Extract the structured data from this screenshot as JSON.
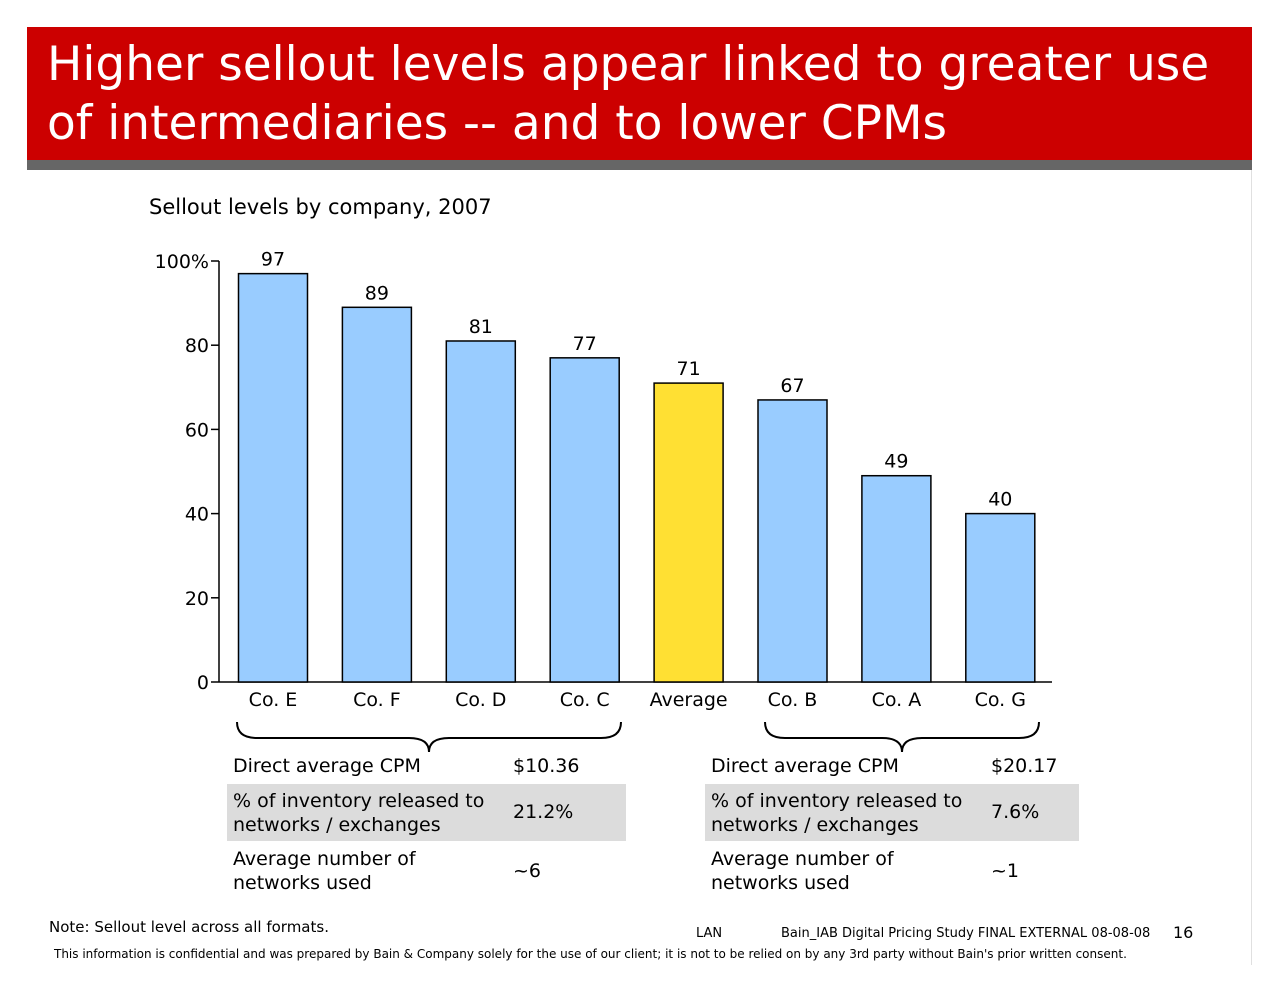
{
  "title": "Higher sellout levels appear linked to greater use of intermediaries -- and to lower CPMs",
  "colors": {
    "title_bg": "#cc0000",
    "title_rule": "#666666",
    "bar_default": "#99ccff",
    "bar_highlight": "#ffe033",
    "table_shade": "#dcdcdc"
  },
  "chart_data": {
    "type": "bar",
    "title": "Sellout levels by company, 2007",
    "categories": [
      "Co. E",
      "Co. F",
      "Co. D",
      "Co. C",
      "Average",
      "Co. B",
      "Co. A",
      "Co. G"
    ],
    "values": [
      97,
      89,
      81,
      77,
      71,
      67,
      49,
      40
    ],
    "data_labels": [
      "97",
      "89",
      "81",
      "77",
      "71",
      "67",
      "49",
      "40"
    ],
    "highlight_category": "Average",
    "ylim": [
      0,
      100
    ],
    "yticks": [
      0,
      20,
      40,
      60,
      80,
      100
    ],
    "ytick_labels": [
      "0",
      "20",
      "40",
      "60",
      "80",
      "100%"
    ],
    "grid": false,
    "xlabel": "",
    "ylabel": ""
  },
  "left_group": {
    "rows": [
      {
        "label": "Direct average CPM",
        "value": "$10.36"
      },
      {
        "label": "% of inventory released to networks / exchanges",
        "value": "21.2%"
      },
      {
        "label": "Average number of networks used",
        "value": "~6"
      }
    ]
  },
  "right_group": {
    "rows": [
      {
        "label": "Direct average CPM",
        "value": "$20.17"
      },
      {
        "label": "% of inventory released to networks / exchanges",
        "value": "7.6%"
      },
      {
        "label": "Average number of networks used",
        "value": "~1"
      }
    ]
  },
  "note": "Note: Sellout level across all formats.",
  "footer": {
    "code": "LAN",
    "doc": "Bain_IAB Digital Pricing Study FINAL EXTERNAL 08-08-08",
    "page": "16"
  },
  "confidential": "This information is confidential and was prepared by Bain & Company solely for the use of our client; it is not to be relied on by any 3rd party without Bain's prior written consent."
}
